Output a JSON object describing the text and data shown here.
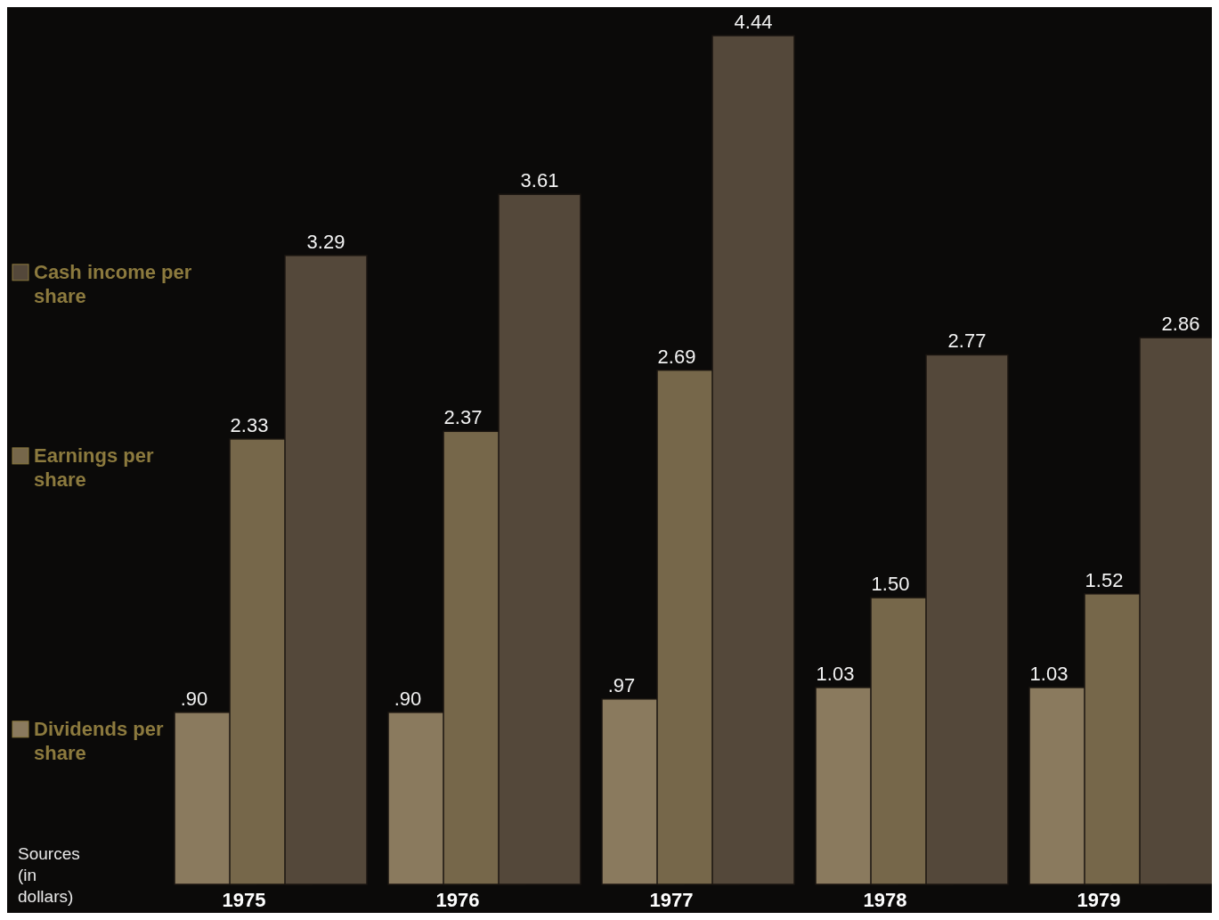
{
  "chart_data": {
    "type": "bar",
    "categories": [
      "1975",
      "1976",
      "1977",
      "1978",
      "1979"
    ],
    "series": [
      {
        "name": "Dividends per share",
        "color": "#8a7a5e",
        "values": [
          0.9,
          0.9,
          0.97,
          1.03,
          1.03
        ],
        "value_labels": [
          ".90",
          ".90",
          ".97",
          "1.03",
          "1.03"
        ]
      },
      {
        "name": "Earnings per share",
        "color": "#76674a",
        "values": [
          2.33,
          2.37,
          2.69,
          1.5,
          1.52
        ],
        "value_labels": [
          "2.33",
          "2.37",
          "2.69",
          "1.50",
          "1.52"
        ]
      },
      {
        "name": "Cash income per share",
        "color": "#54483a",
        "values": [
          3.29,
          3.61,
          4.44,
          2.77,
          2.86
        ],
        "value_labels": [
          "3.29",
          "3.61",
          "4.44",
          "2.77",
          "2.86"
        ]
      }
    ],
    "legend": "left",
    "annotations": [
      "Sources (in dollars)"
    ]
  }
}
